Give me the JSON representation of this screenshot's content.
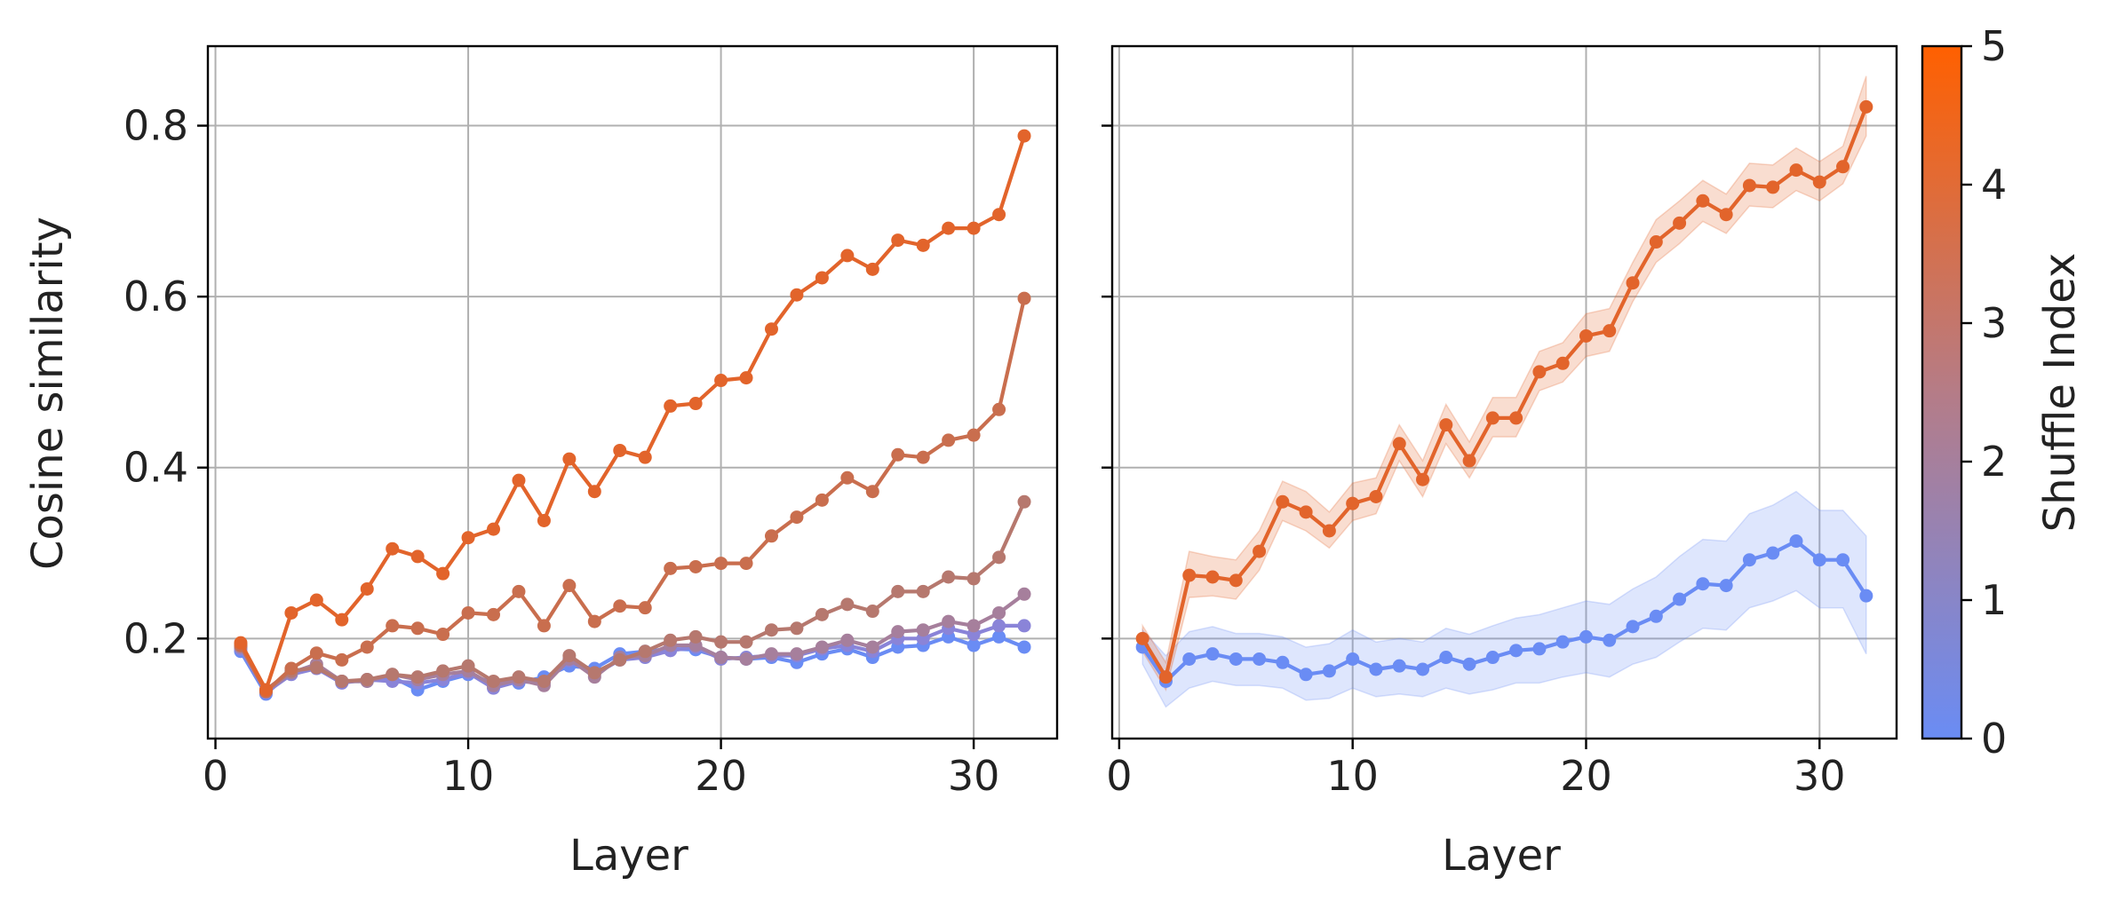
{
  "chart_data": [
    {
      "type": "line",
      "xlabel": "Layer",
      "ylabel": "Cosine similarity",
      "xlim": [
        -0.3,
        33.3
      ],
      "ylim": [
        0.083,
        0.893
      ],
      "xticks": [
        0,
        10,
        20,
        30
      ],
      "yticks": [
        0.2,
        0.4,
        0.6,
        0.8
      ],
      "ytick_labels": [
        "0.2",
        "0.4",
        "0.6",
        "0.8"
      ],
      "grid": true,
      "x": [
        1,
        2,
        3,
        4,
        5,
        6,
        7,
        8,
        9,
        10,
        11,
        12,
        13,
        14,
        15,
        16,
        17,
        18,
        19,
        20,
        21,
        22,
        23,
        24,
        25,
        26,
        27,
        28,
        29,
        30,
        31,
        32
      ],
      "series": [
        {
          "shuffle_index": 0,
          "color": "#6a8cf4",
          "values": [
            0.185,
            0.135,
            0.162,
            0.166,
            0.15,
            0.15,
            0.155,
            0.14,
            0.15,
            0.158,
            0.148,
            0.148,
            0.155,
            0.168,
            0.165,
            0.182,
            0.185,
            0.188,
            0.187,
            0.178,
            0.176,
            0.178,
            0.172,
            0.182,
            0.188,
            0.178,
            0.19,
            0.192,
            0.202,
            0.192,
            0.202,
            0.19
          ]
        },
        {
          "shuffle_index": 1,
          "color": "#8a84d8",
          "values": [
            0.188,
            0.137,
            0.158,
            0.165,
            0.148,
            0.152,
            0.15,
            0.148,
            0.152,
            0.16,
            0.142,
            0.15,
            0.148,
            0.174,
            0.158,
            0.175,
            0.178,
            0.186,
            0.19,
            0.176,
            0.178,
            0.18,
            0.18,
            0.188,
            0.192,
            0.185,
            0.2,
            0.2,
            0.212,
            0.205,
            0.215,
            0.215
          ]
        },
        {
          "shuffle_index": 2,
          "color": "#a67f9c",
          "values": [
            0.19,
            0.138,
            0.16,
            0.17,
            0.15,
            0.15,
            0.158,
            0.152,
            0.158,
            0.162,
            0.145,
            0.152,
            0.145,
            0.176,
            0.155,
            0.178,
            0.18,
            0.192,
            0.192,
            0.178,
            0.176,
            0.182,
            0.182,
            0.19,
            0.198,
            0.19,
            0.208,
            0.21,
            0.22,
            0.215,
            0.23,
            0.252
          ]
        },
        {
          "shuffle_index": 3,
          "color": "#b6786e",
          "values": [
            0.192,
            0.14,
            0.162,
            0.166,
            0.15,
            0.152,
            0.158,
            0.155,
            0.162,
            0.168,
            0.15,
            0.155,
            0.15,
            0.18,
            0.16,
            0.175,
            0.185,
            0.198,
            0.202,
            0.196,
            0.196,
            0.21,
            0.212,
            0.228,
            0.24,
            0.232,
            0.255,
            0.255,
            0.272,
            0.27,
            0.295,
            0.36
          ]
        },
        {
          "shuffle_index": 4,
          "color": "#c96e4e",
          "values": [
            0.192,
            0.138,
            0.165,
            0.183,
            0.175,
            0.19,
            0.215,
            0.212,
            0.205,
            0.23,
            0.228,
            0.255,
            0.215,
            0.262,
            0.22,
            0.238,
            0.236,
            0.282,
            0.284,
            0.288,
            0.288,
            0.32,
            0.342,
            0.362,
            0.388,
            0.372,
            0.415,
            0.412,
            0.432,
            0.438,
            0.468,
            0.598
          ]
        },
        {
          "shuffle_index": 5,
          "color": "#e2642b",
          "values": [
            0.195,
            0.14,
            0.23,
            0.245,
            0.222,
            0.258,
            0.305,
            0.296,
            0.276,
            0.318,
            0.328,
            0.385,
            0.338,
            0.41,
            0.372,
            0.42,
            0.412,
            0.472,
            0.475,
            0.502,
            0.505,
            0.562,
            0.602,
            0.622,
            0.648,
            0.632,
            0.666,
            0.66,
            0.68,
            0.68,
            0.696,
            0.788
          ]
        }
      ]
    },
    {
      "type": "line",
      "xlabel": "Layer",
      "ylabel": "",
      "xlim": [
        -0.3,
        33.3
      ],
      "ylim": [
        0.083,
        0.893
      ],
      "xticks": [
        0,
        10,
        20,
        30
      ],
      "yticks": [
        0.2,
        0.4,
        0.6,
        0.8
      ],
      "grid": true,
      "shaded_band": true,
      "x": [
        1,
        2,
        3,
        4,
        5,
        6,
        7,
        8,
        9,
        10,
        11,
        12,
        13,
        14,
        15,
        16,
        17,
        18,
        19,
        20,
        21,
        22,
        23,
        24,
        25,
        26,
        27,
        28,
        29,
        30,
        31,
        32
      ],
      "series": [
        {
          "shuffle_index": 0,
          "color": "#6a8cf4",
          "values": [
            0.19,
            0.15,
            0.176,
            0.182,
            0.176,
            0.176,
            0.172,
            0.158,
            0.162,
            0.176,
            0.164,
            0.168,
            0.164,
            0.178,
            0.17,
            0.178,
            0.186,
            0.188,
            0.196,
            0.202,
            0.198,
            0.214,
            0.226,
            0.246,
            0.264,
            0.262,
            0.292,
            0.3,
            0.314,
            0.292,
            0.292,
            0.25
          ],
          "lower": [
            0.17,
            0.12,
            0.142,
            0.15,
            0.145,
            0.145,
            0.142,
            0.128,
            0.13,
            0.142,
            0.132,
            0.135,
            0.132,
            0.142,
            0.135,
            0.14,
            0.148,
            0.148,
            0.155,
            0.16,
            0.155,
            0.17,
            0.178,
            0.196,
            0.212,
            0.21,
            0.236,
            0.244,
            0.256,
            0.236,
            0.236,
            0.182
          ],
          "upper": [
            0.21,
            0.18,
            0.208,
            0.214,
            0.206,
            0.206,
            0.202,
            0.19,
            0.194,
            0.21,
            0.196,
            0.2,
            0.196,
            0.212,
            0.205,
            0.215,
            0.224,
            0.228,
            0.236,
            0.244,
            0.24,
            0.258,
            0.272,
            0.296,
            0.316,
            0.314,
            0.346,
            0.356,
            0.372,
            0.35,
            0.35,
            0.32
          ]
        },
        {
          "shuffle_index": 5,
          "color": "#e2642b",
          "values": [
            0.2,
            0.155,
            0.274,
            0.272,
            0.268,
            0.302,
            0.36,
            0.348,
            0.326,
            0.358,
            0.366,
            0.428,
            0.386,
            0.45,
            0.408,
            0.458,
            0.458,
            0.512,
            0.522,
            0.554,
            0.56,
            0.616,
            0.664,
            0.686,
            0.712,
            0.696,
            0.73,
            0.728,
            0.748,
            0.734,
            0.752,
            0.822
          ],
          "lower": [
            0.185,
            0.14,
            0.248,
            0.25,
            0.246,
            0.28,
            0.338,
            0.326,
            0.306,
            0.338,
            0.346,
            0.408,
            0.366,
            0.428,
            0.388,
            0.436,
            0.436,
            0.49,
            0.5,
            0.53,
            0.536,
            0.594,
            0.64,
            0.662,
            0.688,
            0.674,
            0.706,
            0.704,
            0.724,
            0.712,
            0.732,
            0.788
          ],
          "upper": [
            0.215,
            0.172,
            0.302,
            0.296,
            0.292,
            0.326,
            0.384,
            0.372,
            0.348,
            0.382,
            0.388,
            0.45,
            0.408,
            0.474,
            0.43,
            0.482,
            0.482,
            0.536,
            0.546,
            0.58,
            0.586,
            0.64,
            0.69,
            0.712,
            0.736,
            0.72,
            0.756,
            0.754,
            0.774,
            0.758,
            0.776,
            0.858
          ]
        }
      ]
    }
  ],
  "colorbar": {
    "label": "Shuffle Index",
    "min": 0,
    "max": 5,
    "ticks": [
      "0",
      "1",
      "2",
      "3",
      "4",
      "5"
    ],
    "color_low": "#6a8cf4",
    "color_high": "#ff6000"
  }
}
